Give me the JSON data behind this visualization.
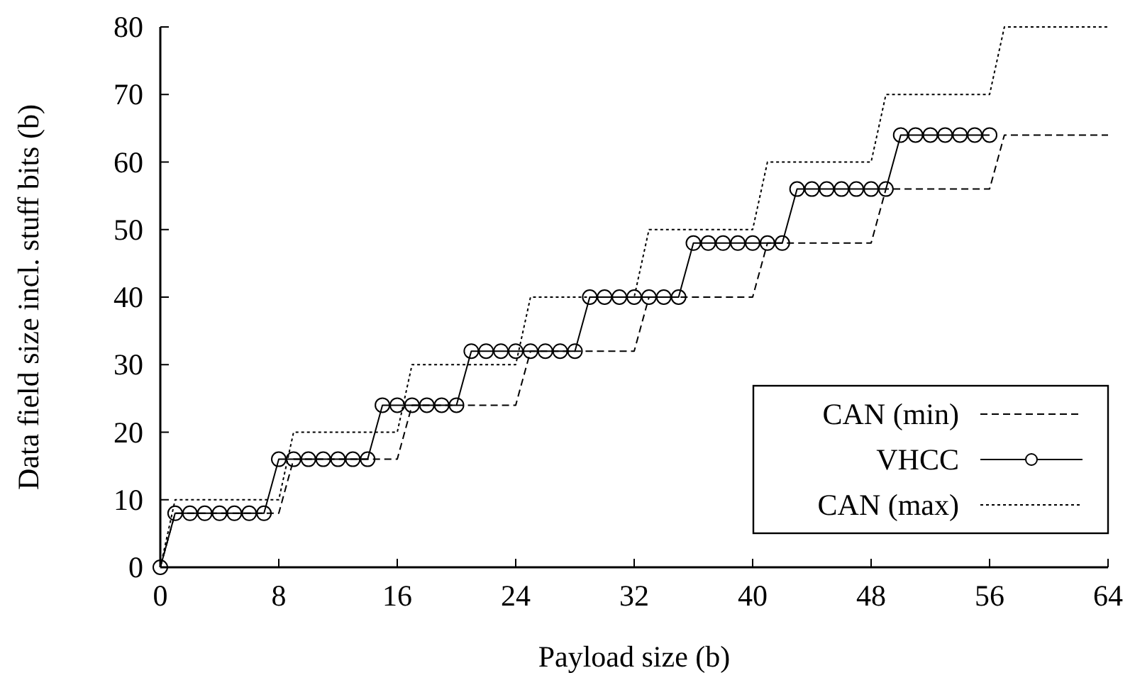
{
  "chart_data": {
    "type": "line",
    "xlabel": "Payload size (b)",
    "ylabel": "Data field size incl. stuff bits (b)",
    "xlim": [
      0,
      64
    ],
    "xticks": [
      0,
      8,
      16,
      24,
      32,
      40,
      48,
      56,
      64
    ],
    "ylim": [
      0,
      80
    ],
    "yticks": [
      0,
      10,
      20,
      30,
      40,
      50,
      60,
      70,
      80
    ],
    "legend": "bottom right",
    "series": [
      {
        "name": "CAN (min)",
        "color": "#000000",
        "marker": "none",
        "line_style": "dashed",
        "x": [
          0,
          1,
          2,
          3,
          4,
          5,
          6,
          7,
          8,
          9,
          10,
          11,
          12,
          13,
          14,
          15,
          16,
          17,
          18,
          19,
          20,
          21,
          22,
          23,
          24,
          25,
          26,
          27,
          28,
          29,
          30,
          31,
          32,
          33,
          34,
          35,
          36,
          37,
          38,
          39,
          40,
          41,
          42,
          43,
          44,
          45,
          46,
          47,
          48,
          49,
          50,
          51,
          52,
          53,
          54,
          55,
          56,
          57,
          58,
          59,
          60,
          61,
          62,
          63,
          64
        ],
        "values": [
          0,
          8,
          8,
          8,
          8,
          8,
          8,
          8,
          8,
          16,
          16,
          16,
          16,
          16,
          16,
          16,
          16,
          24,
          24,
          24,
          24,
          24,
          24,
          24,
          24,
          32,
          32,
          32,
          32,
          32,
          32,
          32,
          32,
          40,
          40,
          40,
          40,
          40,
          40,
          40,
          40,
          48,
          48,
          48,
          48,
          48,
          48,
          48,
          48,
          56,
          56,
          56,
          56,
          56,
          56,
          56,
          56,
          64,
          64,
          64,
          64,
          64,
          64,
          64,
          64
        ]
      },
      {
        "name": "VHCC",
        "color": "#000000",
        "marker": "circle",
        "line_style": "solid",
        "x": [
          0,
          1,
          2,
          3,
          4,
          5,
          6,
          7,
          8,
          9,
          10,
          11,
          12,
          13,
          14,
          15,
          16,
          17,
          18,
          19,
          20,
          21,
          22,
          23,
          24,
          25,
          26,
          27,
          28,
          29,
          30,
          31,
          32,
          33,
          34,
          35,
          36,
          37,
          38,
          39,
          40,
          41,
          42,
          43,
          44,
          45,
          46,
          47,
          48,
          49,
          50,
          51,
          52,
          53,
          54,
          55,
          56
        ],
        "values": [
          0,
          8,
          8,
          8,
          8,
          8,
          8,
          8,
          16,
          16,
          16,
          16,
          16,
          16,
          16,
          24,
          24,
          24,
          24,
          24,
          24,
          32,
          32,
          32,
          32,
          32,
          32,
          32,
          32,
          40,
          40,
          40,
          40,
          40,
          40,
          40,
          48,
          48,
          48,
          48,
          48,
          48,
          48,
          56,
          56,
          56,
          56,
          56,
          56,
          56,
          64,
          64,
          64,
          64,
          64,
          64,
          64
        ]
      },
      {
        "name": "CAN (max)",
        "color": "#000000",
        "marker": "none",
        "line_style": "dotted",
        "x": [
          0,
          1,
          2,
          3,
          4,
          5,
          6,
          7,
          8,
          9,
          10,
          11,
          12,
          13,
          14,
          15,
          16,
          17,
          18,
          19,
          20,
          21,
          22,
          23,
          24,
          25,
          26,
          27,
          28,
          29,
          30,
          31,
          32,
          33,
          34,
          35,
          36,
          37,
          38,
          39,
          40,
          41,
          42,
          43,
          44,
          45,
          46,
          47,
          48,
          49,
          50,
          51,
          52,
          53,
          54,
          55,
          56,
          57,
          58,
          59,
          60,
          61,
          62,
          63,
          64
        ],
        "values": [
          0,
          10,
          10,
          10,
          10,
          10,
          10,
          10,
          10,
          20,
          20,
          20,
          20,
          20,
          20,
          20,
          20,
          30,
          30,
          30,
          30,
          30,
          30,
          30,
          30,
          40,
          40,
          40,
          40,
          40,
          40,
          40,
          40,
          50,
          50,
          50,
          50,
          50,
          50,
          50,
          50,
          60,
          60,
          60,
          60,
          60,
          60,
          60,
          60,
          70,
          70,
          70,
          70,
          70,
          70,
          70,
          70,
          80,
          80,
          80,
          80,
          80,
          80,
          80,
          80
        ]
      }
    ]
  }
}
